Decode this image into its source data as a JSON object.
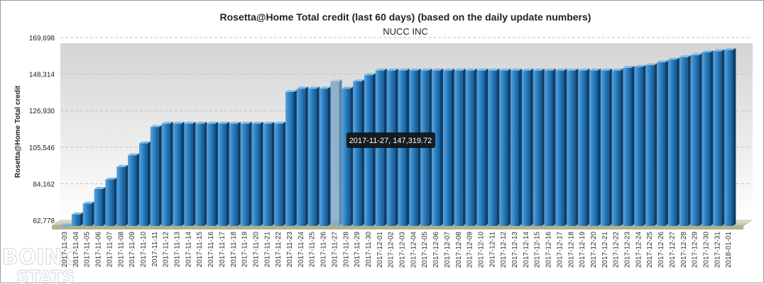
{
  "chart_data": {
    "type": "bar",
    "title": "Rosetta@Home Total credit (last 60 days) (based on the daily update numbers)",
    "subtitle": "NUCC INC",
    "xlabel": "",
    "ylabel": "Rosetta@Home Total credit",
    "ylim": [
      62778,
      169698
    ],
    "yticks": [
      "62,778",
      "84,162",
      "105,546",
      "126,930",
      "148,314",
      "169,698"
    ],
    "grid": true,
    "bar_color": "#1d74b7",
    "categories": [
      "2017-11-03",
      "2017-11-04",
      "2017-11-05",
      "2017-11-06",
      "2017-11-07",
      "2017-11-08",
      "2017-11-09",
      "2017-11-10",
      "2017-11-11",
      "2017-11-12",
      "2017-11-13",
      "2017-11-14",
      "2017-11-15",
      "2017-11-16",
      "2017-11-17",
      "2017-11-18",
      "2017-11-19",
      "2017-11-20",
      "2017-11-21",
      "2017-11-22",
      "2017-11-23",
      "2017-11-24",
      "2017-11-25",
      "2017-11-26",
      "2017-11-27",
      "2017-11-28",
      "2017-11-29",
      "2017-11-30",
      "2017-12-01",
      "2017-12-02",
      "2017-12-03",
      "2017-12-04",
      "2017-12-05",
      "2017-12-06",
      "2017-12-07",
      "2017-12-08",
      "2017-12-09",
      "2017-12-10",
      "2017-12-11",
      "2017-12-12",
      "2017-12-13",
      "2017-12-14",
      "2017-12-15",
      "2017-12-16",
      "2017-12-17",
      "2017-12-18",
      "2017-12-19",
      "2017-12-20",
      "2017-12-21",
      "2017-12-22",
      "2017-12-23",
      "2017-12-24",
      "2017-12-25",
      "2017-12-26",
      "2017-12-27",
      "2017-12-28",
      "2017-12-29",
      "2017-12-30",
      "2017-12-31",
      "2018-01-01"
    ],
    "values": [
      62900,
      69500,
      75800,
      84400,
      89900,
      97300,
      104100,
      111100,
      120600,
      122600,
      122600,
      122600,
      122600,
      122600,
      122600,
      122600,
      122600,
      122600,
      122600,
      122600,
      141100,
      143100,
      143100,
      143100,
      147319.72,
      143100,
      147300,
      151000,
      153700,
      153700,
      153700,
      153700,
      153700,
      153700,
      153700,
      153700,
      153700,
      153700,
      153700,
      153700,
      153700,
      153700,
      153700,
      153700,
      153700,
      153700,
      153700,
      153700,
      153700,
      153700,
      155300,
      155800,
      156800,
      158500,
      160100,
      161500,
      162700,
      164300,
      165000,
      165700
    ],
    "tooltip": "2017-11-27, 147,319.72",
    "highlight_index": 24
  },
  "watermark": {
    "line1": "BOINC",
    "line2": "STATS"
  }
}
